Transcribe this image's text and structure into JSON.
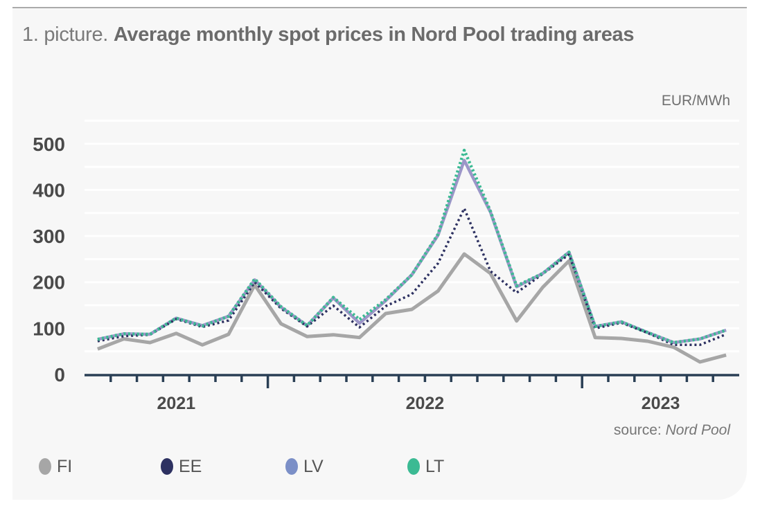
{
  "header": {
    "title_prefix": "1. picture. ",
    "title_main": "Average monthly spot prices in Nord Pool trading areas"
  },
  "unit_label": "EUR/MWh",
  "source": {
    "prefix": "source: ",
    "name": "Nord Pool"
  },
  "legend": [
    {
      "key": "FI",
      "label": "FI",
      "color": "#a6a6a6"
    },
    {
      "key": "EE",
      "label": "EE",
      "color": "#2d3161"
    },
    {
      "key": "LV",
      "label": "LV",
      "color": "#7b8fc7"
    },
    {
      "key": "LT",
      "label": "LT",
      "color": "#3bba93"
    }
  ],
  "chart_data": {
    "type": "line",
    "title": "Average monthly spot prices in Nord Pool trading areas",
    "xlabel": "",
    "ylabel": "EUR/MWh",
    "ylim": [
      0,
      550
    ],
    "yticks": [
      0,
      100,
      200,
      300,
      400,
      500
    ],
    "grid": true,
    "legend_position": "bottom",
    "x": [
      "2021-06",
      "2021-07",
      "2021-08",
      "2021-09",
      "2021-10",
      "2021-11",
      "2021-12",
      "2022-01",
      "2022-02",
      "2022-03",
      "2022-04",
      "2022-05",
      "2022-06",
      "2022-07",
      "2022-08",
      "2022-09",
      "2022-10",
      "2022-11",
      "2022-12",
      "2023-01",
      "2023-02",
      "2023-03",
      "2023-04",
      "2023-05",
      "2023-06"
    ],
    "year_labels": [
      {
        "label": "2021",
        "start_index": 0,
        "count": 7
      },
      {
        "label": "2022",
        "start_index": 7,
        "count": 12
      },
      {
        "label": "2023",
        "start_index": 19,
        "count": 6
      }
    ],
    "series": [
      {
        "name": "FI",
        "style": "solid",
        "color": "#a6a6a6",
        "values": [
          55,
          77,
          69,
          89,
          64,
          87,
          194,
          110,
          82,
          86,
          80,
          132,
          141,
          181,
          261,
          219,
          116,
          189,
          246,
          80,
          78,
          72,
          59,
          27,
          42
        ]
      },
      {
        "name": "EE",
        "style": "dotted",
        "color": "#2d3161",
        "values": [
          72,
          83,
          86,
          120,
          103,
          117,
          200,
          143,
          104,
          149,
          102,
          148,
          174,
          241,
          360,
          224,
          177,
          218,
          260,
          100,
          112,
          90,
          64,
          64,
          87
        ]
      },
      {
        "name": "LV",
        "style": "solid",
        "color": "#9c96c8",
        "values": [
          76,
          88,
          87,
          122,
          106,
          126,
          205,
          146,
          106,
          166,
          111,
          160,
          216,
          302,
          464,
          352,
          190,
          219,
          265,
          104,
          114,
          91,
          69,
          77,
          96
        ]
      },
      {
        "name": "LT",
        "style": "dotted",
        "color": "#3bba93",
        "values": [
          76,
          88,
          87,
          122,
          105,
          126,
          207,
          147,
          106,
          167,
          119,
          162,
          216,
          304,
          486,
          354,
          192,
          219,
          265,
          104,
          114,
          91,
          69,
          77,
          96
        ]
      }
    ]
  }
}
